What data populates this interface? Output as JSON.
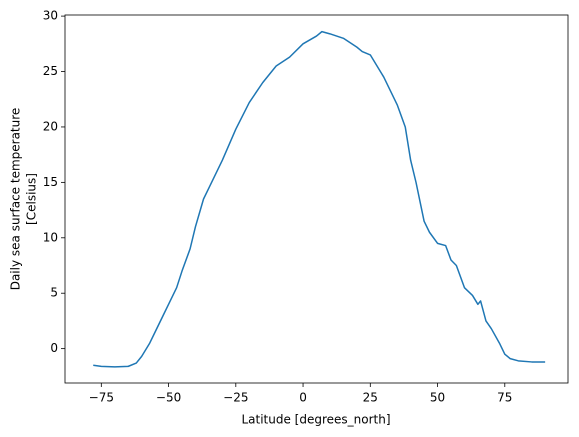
{
  "chart_data": {
    "type": "line",
    "xlabel": "Latitude [degrees_north]",
    "ylabel": [
      "Daily sea surface temperature",
      "[Celsius]"
    ],
    "series": [
      {
        "color": "#1f77b4",
        "x": [
          -78,
          -75,
          -70,
          -65,
          -62,
          -60,
          -57,
          -55,
          -52,
          -50,
          -47,
          -45,
          -42,
          -40,
          -37,
          -35,
          -30,
          -25,
          -20,
          -15,
          -10,
          -5,
          0,
          5,
          7,
          10,
          15,
          20,
          22,
          25,
          30,
          35,
          38,
          40,
          42,
          45,
          47,
          50,
          53,
          55,
          57,
          60,
          63,
          65,
          66,
          68,
          70,
          73,
          75,
          77,
          80,
          85,
          90
        ],
        "values": [
          -1.5,
          -1.6,
          -1.65,
          -1.6,
          -1.3,
          -0.7,
          0.5,
          1.5,
          3.0,
          4.0,
          5.5,
          7.0,
          9.0,
          11.0,
          13.5,
          14.5,
          17.0,
          19.8,
          22.2,
          24.0,
          25.5,
          26.3,
          27.5,
          28.2,
          28.6,
          28.4,
          28.0,
          27.2,
          26.8,
          26.5,
          24.5,
          22.0,
          20.0,
          17.0,
          15.0,
          11.5,
          10.5,
          9.5,
          9.3,
          8.0,
          7.5,
          5.5,
          4.8,
          4.0,
          4.3,
          2.5,
          1.8,
          0.5,
          -0.5,
          -0.9,
          -1.1,
          -1.2,
          -1.2
        ]
      }
    ],
    "xlim": [
      -88.5,
      98.5
    ],
    "xticks": [
      {
        "value": -75,
        "label": "−75"
      },
      {
        "value": -50,
        "label": "−50"
      },
      {
        "value": -25,
        "label": "−25"
      },
      0,
      25,
      50,
      75
    ],
    "ylim": [
      -3.1,
      30.1
    ],
    "yticks": [
      0,
      5,
      10,
      15,
      20,
      25,
      30
    ]
  }
}
